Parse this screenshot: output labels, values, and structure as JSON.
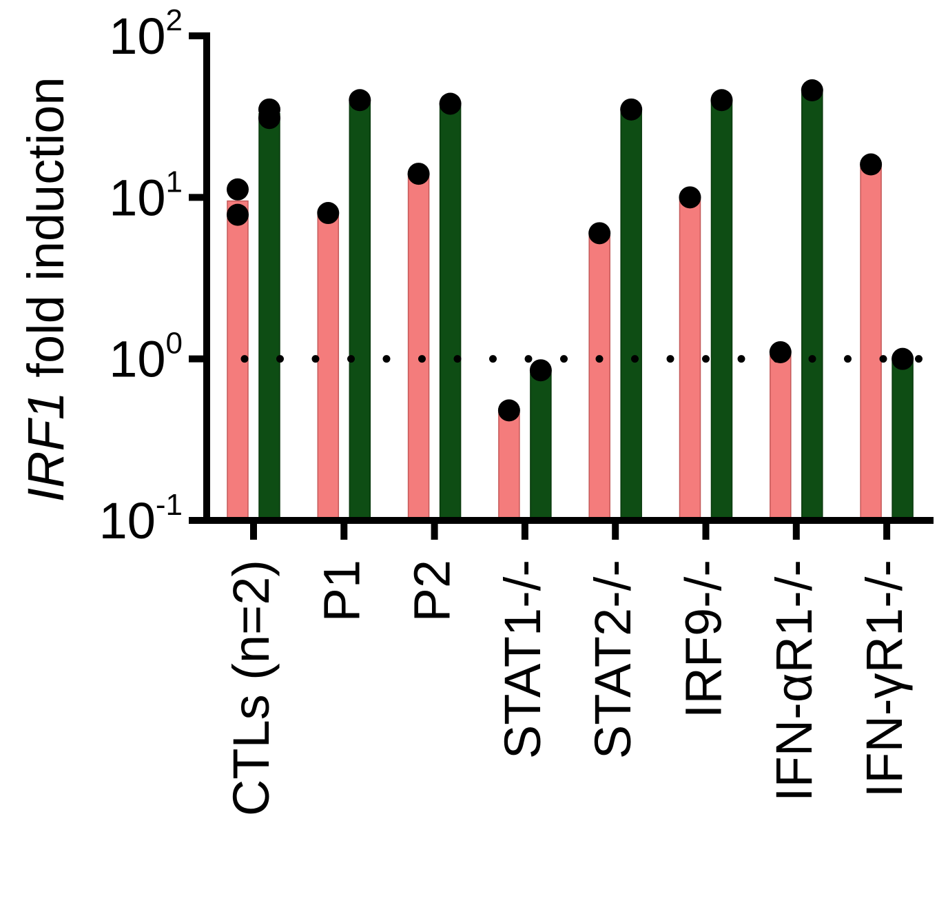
{
  "chart_data": {
    "type": "bar",
    "ylabel_italic": "IRF1",
    "ylabel_rest": " fold induction",
    "yscale": "log",
    "ylim": [
      0.1,
      100
    ],
    "yticks": [
      {
        "value": 0.1,
        "base": "10",
        "exp": "-1"
      },
      {
        "value": 1,
        "base": "10",
        "exp": "0"
      },
      {
        "value": 10,
        "base": "10",
        "exp": "1"
      },
      {
        "value": 100,
        "base": "10",
        "exp": "2"
      }
    ],
    "reference_line": 1,
    "categories": [
      "CTLs (n=2)",
      "P1",
      "P2",
      "STAT1-/-",
      "STAT2-/-",
      "IRF9-/-",
      "IFN-αR1-/-",
      "IFN-γR1-/-"
    ],
    "series": [
      {
        "color": "#f47c7c",
        "values": [
          9.5,
          8.0,
          14.0,
          0.48,
          6.0,
          10.0,
          1.1,
          16.0
        ]
      },
      {
        "color": "#0e4d14",
        "values": [
          33,
          40,
          38,
          0.85,
          35,
          40,
          46,
          1.0
        ]
      }
    ],
    "points": [
      [
        [
          11.2,
          7.8
        ],
        [
          8.0
        ],
        [
          14.0
        ],
        [
          0.48
        ],
        [
          6.0
        ],
        [
          10.0
        ],
        [
          1.1
        ],
        [
          16.0
        ]
      ],
      [
        [
          35,
          31
        ],
        [
          40
        ],
        [
          38
        ],
        [
          0.85
        ],
        [
          35
        ],
        [
          40
        ],
        [
          46
        ],
        [
          1.0
        ]
      ]
    ],
    "grid": false
  }
}
